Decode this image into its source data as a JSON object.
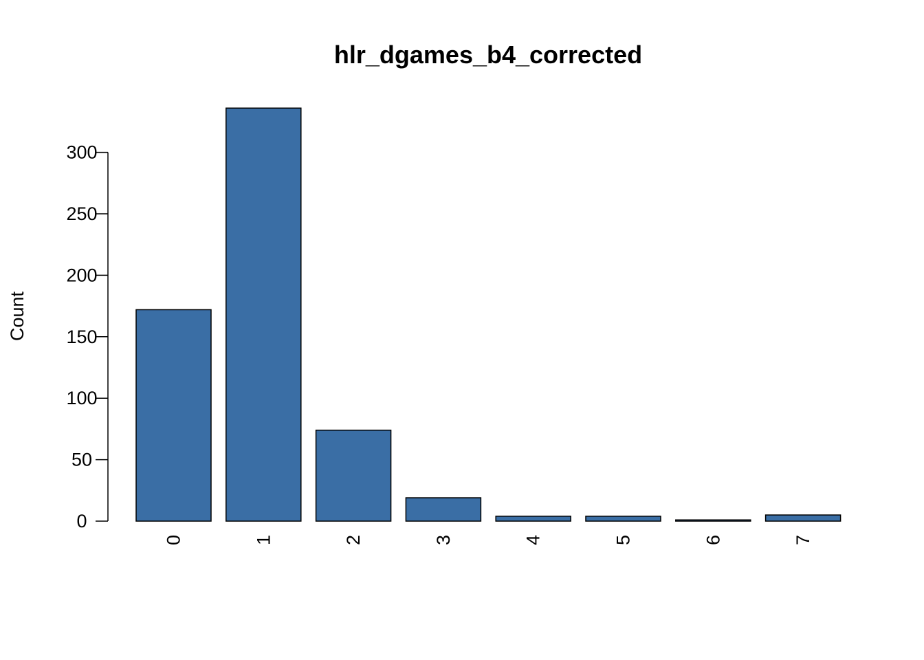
{
  "chart_data": {
    "type": "bar",
    "title": "hlr_dgames_b4_corrected",
    "xlabel": "",
    "ylabel": "Count",
    "categories": [
      "0",
      "1",
      "2",
      "3",
      "4",
      "5",
      "6",
      "7"
    ],
    "values": [
      172,
      336,
      74,
      19,
      4,
      4,
      1,
      5
    ],
    "yticks": [
      0,
      50,
      100,
      150,
      200,
      250,
      300
    ],
    "ylim": [
      0,
      336
    ],
    "grid": false,
    "bar_color": "#3A6EA5",
    "x_tick_label_rotation": "vertical"
  }
}
